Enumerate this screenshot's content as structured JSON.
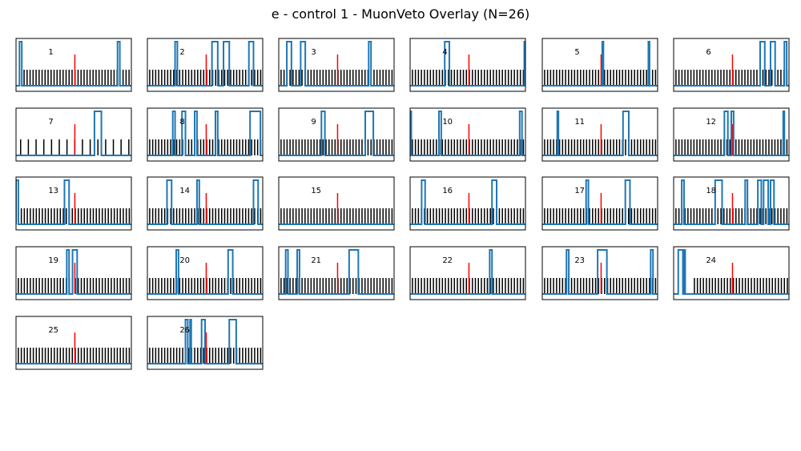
{
  "figure": {
    "title": "e - control 1 - MuonVeto Overlay (N=26)"
  },
  "chart_data": {
    "type": "line",
    "title": "e - control 1 - MuonVeto Overlay (N=26)",
    "n_panels": 26,
    "grid": false,
    "legend": "none",
    "colors": {
      "veto_trace": "#1f77b4",
      "ticks": "#000000",
      "trigger_marker": "#ff0000"
    },
    "panels": [
      {
        "label": "1",
        "veto_pulses": [
          [
            0.03,
            0.05
          ],
          [
            0.88,
            0.9
          ]
        ],
        "tick_spacing": 0.026,
        "tick_start": 0.07
      },
      {
        "label": "2",
        "veto_pulses": [
          [
            0.24,
            0.26
          ],
          [
            0.56,
            0.61
          ],
          [
            0.66,
            0.71
          ],
          [
            0.88,
            0.92
          ]
        ],
        "tick_spacing": 0.026,
        "tick_start": 0.02
      },
      {
        "label": "3",
        "veto_pulses": [
          [
            0.07,
            0.11
          ],
          [
            0.19,
            0.23
          ],
          [
            0.78,
            0.8
          ]
        ],
        "tick_spacing": 0.026,
        "tick_start": 0.02
      },
      {
        "label": "4",
        "veto_pulses": [
          [
            0.3,
            0.34
          ],
          [
            0.99,
            1.0
          ]
        ],
        "tick_spacing": 0.026,
        "tick_start": 0.02
      },
      {
        "label": "5",
        "veto_pulses": [
          [
            0.52,
            0.53
          ],
          [
            0.92,
            0.93
          ]
        ],
        "tick_spacing": 0.026,
        "tick_start": 0.02
      },
      {
        "label": "6",
        "veto_pulses": [
          [
            0.75,
            0.79
          ],
          [
            0.84,
            0.88
          ],
          [
            0.96,
            0.98
          ]
        ],
        "tick_spacing": 0.026,
        "tick_start": 0.02
      },
      {
        "label": "7",
        "veto_pulses": [
          [
            0.68,
            0.74
          ]
        ],
        "tick_spacing": 0.067,
        "tick_start": 0.04
      },
      {
        "label": "8",
        "veto_pulses": [
          [
            0.22,
            0.24
          ],
          [
            0.3,
            0.33
          ],
          [
            0.41,
            0.43
          ],
          [
            0.59,
            0.61
          ],
          [
            0.89,
            0.98
          ]
        ],
        "tick_spacing": 0.026,
        "tick_start": 0.02
      },
      {
        "label": "9",
        "veto_pulses": [
          [
            0.37,
            0.4
          ],
          [
            0.75,
            0.82
          ]
        ],
        "tick_spacing": 0.026,
        "tick_start": 0.02
      },
      {
        "label": "10",
        "veto_pulses": [
          [
            0.0,
            0.01
          ],
          [
            0.25,
            0.27
          ],
          [
            0.95,
            0.97
          ]
        ],
        "tick_spacing": 0.026,
        "tick_start": 0.02
      },
      {
        "label": "11",
        "veto_pulses": [
          [
            0.13,
            0.14
          ],
          [
            0.7,
            0.75
          ]
        ],
        "tick_spacing": 0.026,
        "tick_start": 0.02
      },
      {
        "label": "12",
        "veto_pulses": [
          [
            0.44,
            0.47
          ],
          [
            0.5,
            0.52
          ],
          [
            0.95,
            0.96
          ]
        ],
        "tick_spacing": 0.026,
        "tick_start": 0.02
      },
      {
        "label": "13",
        "veto_pulses": [
          [
            0.0,
            0.02
          ],
          [
            0.42,
            0.46
          ]
        ],
        "tick_spacing": 0.026,
        "tick_start": 0.02
      },
      {
        "label": "14",
        "veto_pulses": [
          [
            0.17,
            0.21
          ],
          [
            0.43,
            0.45
          ],
          [
            0.92,
            0.96
          ]
        ],
        "tick_spacing": 0.026,
        "tick_start": 0.02
      },
      {
        "label": "15",
        "veto_pulses": [],
        "tick_spacing": 0.026,
        "tick_start": 0.02
      },
      {
        "label": "16",
        "veto_pulses": [
          [
            0.1,
            0.13
          ],
          [
            0.71,
            0.75
          ]
        ],
        "tick_spacing": 0.026,
        "tick_start": 0.02
      },
      {
        "label": "17",
        "veto_pulses": [
          [
            0.38,
            0.4
          ],
          [
            0.72,
            0.76
          ]
        ],
        "tick_spacing": 0.026,
        "tick_start": 0.02
      },
      {
        "label": "18",
        "veto_pulses": [
          [
            0.07,
            0.09
          ],
          [
            0.36,
            0.42
          ],
          [
            0.62,
            0.64
          ],
          [
            0.73,
            0.76
          ],
          [
            0.78,
            0.82
          ],
          [
            0.84,
            0.87
          ]
        ],
        "tick_spacing": 0.026,
        "tick_start": 0.02
      },
      {
        "label": "19",
        "veto_pulses": [
          [
            0.44,
            0.46
          ],
          [
            0.49,
            0.53
          ]
        ],
        "tick_spacing": 0.026,
        "tick_start": 0.02
      },
      {
        "label": "20",
        "veto_pulses": [
          [
            0.25,
            0.27
          ],
          [
            0.7,
            0.74
          ]
        ],
        "tick_spacing": 0.026,
        "tick_start": 0.02
      },
      {
        "label": "21",
        "veto_pulses": [
          [
            0.06,
            0.08
          ],
          [
            0.16,
            0.18
          ],
          [
            0.61,
            0.69
          ]
        ],
        "tick_spacing": 0.026,
        "tick_start": 0.02
      },
      {
        "label": "22",
        "veto_pulses": [
          [
            0.69,
            0.71
          ]
        ],
        "tick_spacing": 0.026,
        "tick_start": 0.02
      },
      {
        "label": "23",
        "veto_pulses": [
          [
            0.21,
            0.23
          ],
          [
            0.48,
            0.56
          ],
          [
            0.94,
            0.96
          ]
        ],
        "tick_spacing": 0.026,
        "tick_start": 0.02
      },
      {
        "label": "24",
        "veto_pulses": [
          [
            0.04,
            0.08
          ],
          [
            0.09,
            0.1
          ]
        ],
        "tick_spacing": 0.026,
        "tick_start": 0.18
      },
      {
        "label": "25",
        "veto_pulses": [],
        "tick_spacing": 0.026,
        "tick_start": 0.02
      },
      {
        "label": "26",
        "veto_pulses": [
          [
            0.33,
            0.35
          ],
          [
            0.37,
            0.38
          ],
          [
            0.47,
            0.5
          ],
          [
            0.71,
            0.77
          ]
        ],
        "tick_spacing": 0.026,
        "tick_start": 0.02
      }
    ],
    "trigger_x": 0.51
  }
}
